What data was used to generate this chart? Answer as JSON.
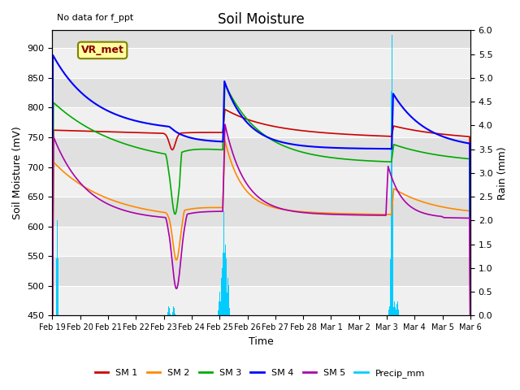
{
  "title": "Soil Moisture",
  "xlabel": "Time",
  "ylabel_left": "Soil Moisture (mV)",
  "ylabel_right": "Rain (mm)",
  "annotation": "No data for f_ppt",
  "station_label": "VR_met",
  "ylim_left": [
    450,
    930
  ],
  "ylim_right": [
    0,
    6.0
  ],
  "yticks_left": [
    450,
    500,
    550,
    600,
    650,
    700,
    750,
    800,
    850,
    900
  ],
  "yticks_right": [
    0.0,
    0.5,
    1.0,
    1.5,
    2.0,
    2.5,
    3.0,
    3.5,
    4.0,
    4.5,
    5.0,
    5.5,
    6.0
  ],
  "colors": {
    "SM1": "#cc0000",
    "SM2": "#ff8800",
    "SM3": "#00aa00",
    "SM4": "#0000ff",
    "SM5": "#aa00aa",
    "Precip": "#00ccff",
    "bg_plot": "#e0e0e0",
    "bg_band": "#f0f0f0"
  },
  "legend_labels": [
    "SM 1",
    "SM 2",
    "SM 3",
    "SM 4",
    "SM 5",
    "Precip_mm"
  ],
  "xtick_labels": [
    "Feb 19",
    "Feb 20",
    "Feb 21",
    "Feb 22",
    "Feb 23",
    "Feb 24",
    "Feb 25",
    "Feb 26",
    "Feb 27",
    "Feb 28",
    "Mar 1",
    "Mar 2",
    "Mar 3",
    "Mar 4",
    "Mar 5",
    "Mar 6"
  ],
  "xtick_pos": [
    0,
    1,
    2,
    3,
    4,
    5,
    6,
    7,
    8,
    9,
    10,
    11,
    12,
    13,
    14,
    15
  ],
  "n_points": 1500
}
